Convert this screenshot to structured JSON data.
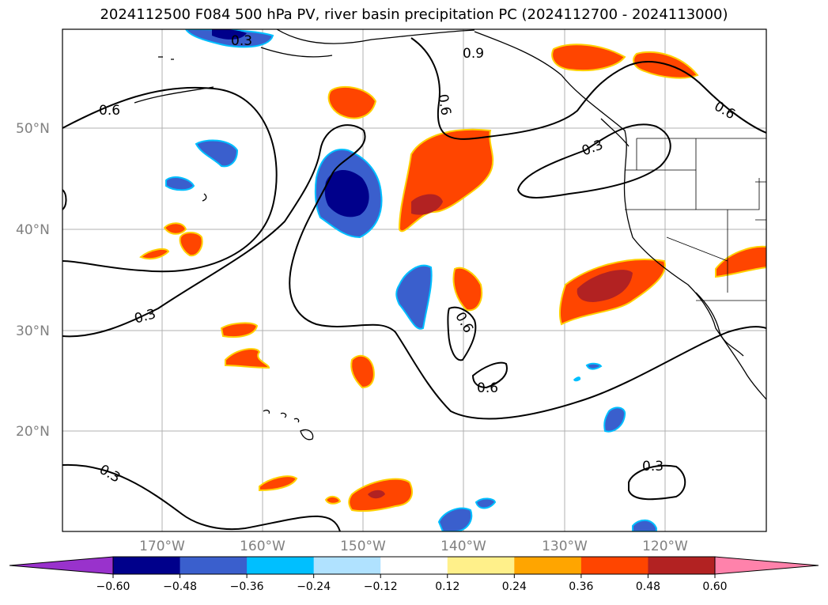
{
  "title": "2024112500 F084 500 hPa PV, river basin precipitation PC (2024112700 - 2024113000)",
  "map": {
    "lat_ticks": [
      "50°N",
      "40°N",
      "30°N",
      "20°N"
    ],
    "lon_ticks": [
      "170°W",
      "160°W",
      "150°W",
      "140°W",
      "130°W",
      "120°W"
    ],
    "contour_labels": [
      "0.3",
      "0.9",
      "0.6",
      "0.6",
      "0.6",
      "0.3",
      "0.3",
      "0.6",
      "0.6",
      "0.3",
      "0.3"
    ]
  },
  "colorbar": {
    "ticks": [
      "−0.60",
      "−0.48",
      "−0.36",
      "−0.24",
      "−0.12",
      "0.12",
      "0.24",
      "0.36",
      "0.48",
      "0.60"
    ],
    "colors": [
      "#9932cc",
      "#00008b",
      "#3a5fcd",
      "#00bfff",
      "#b0e2ff",
      "#ffffff",
      "#fff08a",
      "#ffa500",
      "#ff4500",
      "#b22222",
      "#ff82ab"
    ]
  }
}
